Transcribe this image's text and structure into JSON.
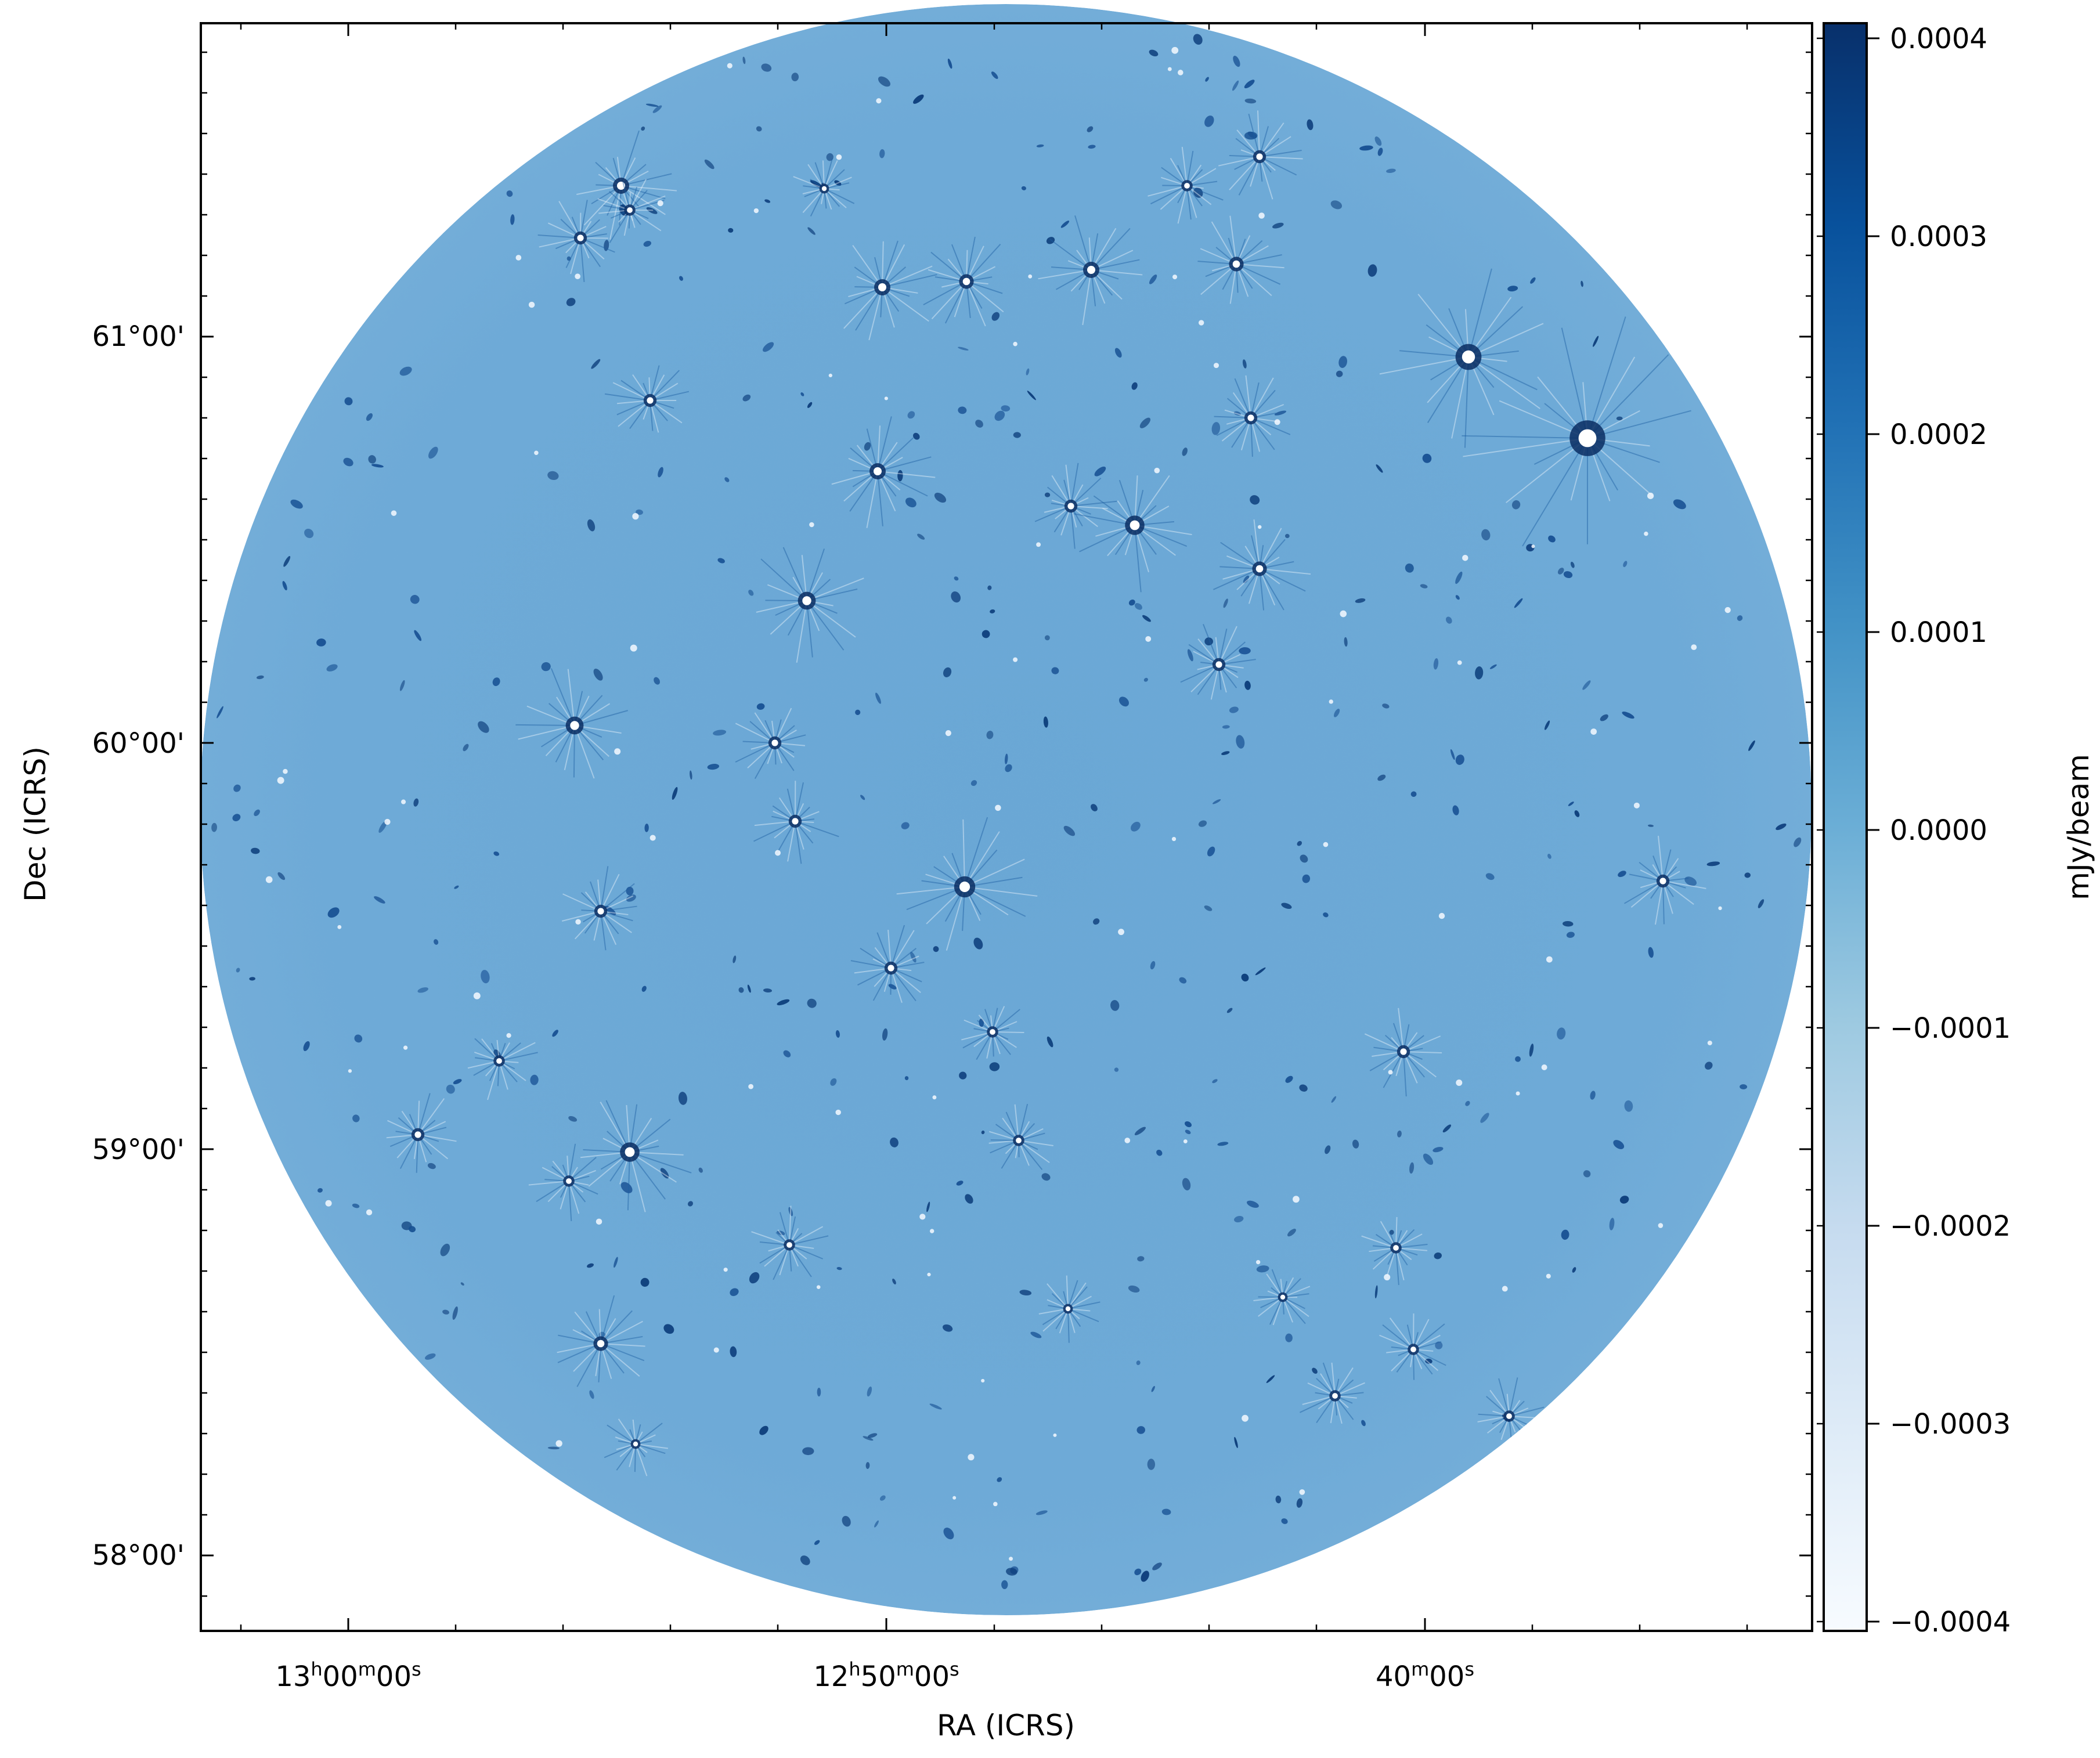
{
  "image": {
    "subject": "radio-astronomy-continuum-map",
    "field_shape": "circular",
    "colormap": "Blues",
    "background_color": "#6ca8d6"
  },
  "axes": {
    "xlabel": "RA (ICRS)",
    "ylabel": "Dec (ICRS)",
    "x_ticks": [
      {
        "h": "13",
        "m": "00",
        "s": "00"
      },
      {
        "h": "12",
        "m": "50",
        "s": "00"
      },
      {
        "h": "",
        "m": "40",
        "s": "00"
      }
    ],
    "y_ticks": [
      "61°00'",
      "60°00'",
      "59°00'",
      "58°00'"
    ]
  },
  "colorbar": {
    "label": "mJy/beam",
    "ticks": [
      "0.0004",
      "0.0003",
      "0.0002",
      "0.0001",
      "0.0000",
      "−0.0001",
      "−0.0002",
      "−0.0003",
      "−0.0004"
    ],
    "range": [
      -0.0004,
      0.0004
    ],
    "color_low": "#f7fbff",
    "color_mid": "#6baed6",
    "color_high": "#08306b"
  }
}
